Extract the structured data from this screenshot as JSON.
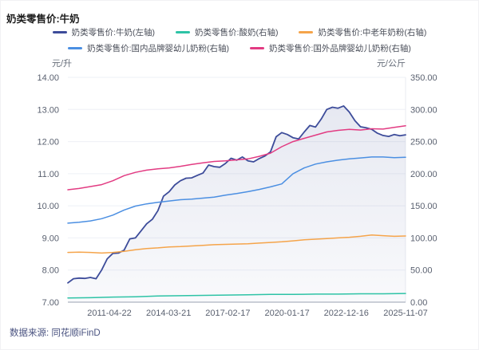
{
  "title": "奶类零售价:牛奶",
  "footer": {
    "source": "数据来源: 同花顺iFinD"
  },
  "chart_data": {
    "type": "line",
    "title": "奶类零售价:牛奶",
    "grid": true,
    "legend_position": "top-center",
    "x_tick_labels": [
      "2011-04-22",
      "2014-03-21",
      "2017-02-17",
      "2020-01-17",
      "2022-12-16",
      "2025-11-07"
    ],
    "x_range": [
      "2011-04-22",
      "2025-11-07"
    ],
    "sampling_note": "values sampled at uniform intervals across the plotted x-range",
    "left_axis": {
      "unit": "元/升",
      "min": 7,
      "max": 14,
      "ticks": [
        "14.00",
        "13.00",
        "12.00",
        "11.00",
        "10.00",
        "9.00",
        "8.00",
        "7.00"
      ]
    },
    "right_axis": {
      "unit": "元/公斤",
      "min": 0,
      "max": 350,
      "ticks": [
        "350.00",
        "300.00",
        "250.00",
        "200.00",
        "150.00",
        "100.00",
        "50.00",
        "0.00"
      ]
    },
    "series": [
      {
        "name": "奶类零售价:牛奶(左轴)",
        "axis": "left",
        "color": "#3d4c9a",
        "width": 1.8,
        "area": true,
        "values": [
          7.6,
          7.73,
          7.75,
          7.74,
          7.77,
          7.73,
          8.0,
          8.35,
          8.52,
          8.53,
          8.62,
          8.97,
          9.0,
          9.22,
          9.44,
          9.58,
          9.85,
          10.3,
          10.44,
          10.65,
          10.78,
          10.86,
          10.87,
          10.95,
          11.02,
          11.27,
          11.22,
          11.2,
          11.32,
          11.48,
          11.42,
          11.52,
          11.4,
          11.37,
          11.47,
          11.55,
          11.68,
          12.15,
          12.28,
          12.22,
          12.12,
          12.08,
          12.3,
          12.5,
          12.45,
          12.7,
          13.0,
          13.07,
          13.04,
          13.11,
          12.92,
          12.65,
          12.46,
          12.43,
          12.38,
          12.26,
          12.19,
          12.16,
          12.22,
          12.18,
          12.21
        ]
      },
      {
        "name": "奶类零售价:酸奶(右轴)",
        "axis": "right",
        "color": "#2ec3a6",
        "width": 1.5,
        "area": false,
        "values": [
          6.5,
          7,
          8,
          8.5,
          9.5,
          10,
          10.5,
          11,
          11.5,
          12,
          12,
          12.5,
          12.5,
          13,
          13,
          13.5
        ]
      },
      {
        "name": "奶类零售价:中老年奶粉(右轴)",
        "axis": "right",
        "color": "#f5a44a",
        "width": 1.5,
        "area": false,
        "values": [
          77.5,
          78,
          77.5,
          76.5,
          77.5,
          79,
          81.5,
          83.5,
          84.5,
          86,
          86.5,
          87.5,
          88.5,
          89.5,
          90,
          90.5,
          91,
          92,
          93,
          94,
          95.5,
          97,
          98,
          99,
          100,
          101,
          102.5,
          104.5,
          103.5,
          102.5,
          103
        ]
      },
      {
        "name": "奶类零售价:国内品牌婴幼儿奶粉(右轴)",
        "axis": "right",
        "color": "#4b8fe2",
        "width": 1.5,
        "area": false,
        "values": [
          123,
          124.5,
          126.5,
          130,
          135.5,
          143.5,
          149.5,
          153,
          155.5,
          157.5,
          159.5,
          160.5,
          162,
          163.5,
          166.5,
          169,
          172,
          175.5,
          179.5,
          184,
          200,
          209,
          215,
          218.5,
          221,
          223,
          224.5,
          226,
          226,
          225,
          225.5
        ]
      },
      {
        "name": "奶类零售价:国外品牌婴幼儿奶粉(右轴)",
        "axis": "right",
        "color": "#e23b82",
        "width": 1.5,
        "area": false,
        "values": [
          175,
          177,
          180,
          183,
          189,
          197,
          202,
          205.5,
          207.5,
          209,
          211.5,
          214.5,
          217,
          219,
          220,
          221.5,
          223,
          227,
          232,
          242,
          250,
          255,
          260,
          265,
          267.5,
          269,
          268,
          270,
          269.5,
          272,
          274.5
        ]
      }
    ]
  }
}
